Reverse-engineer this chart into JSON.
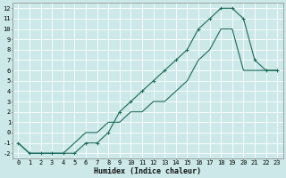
{
  "title": "",
  "xlabel": "Humidex (Indice chaleur)",
  "ylabel": "",
  "bg_color": "#cce8e8",
  "grid_color": "#ffffff",
  "line_color": "#1a6b5a",
  "xlim": [
    -0.5,
    23.5
  ],
  "ylim": [
    -2.5,
    12.5
  ],
  "xticks": [
    0,
    1,
    2,
    3,
    4,
    5,
    6,
    7,
    8,
    9,
    10,
    11,
    12,
    13,
    14,
    15,
    16,
    17,
    18,
    19,
    20,
    21,
    22,
    23
  ],
  "yticks": [
    -2,
    -1,
    0,
    1,
    2,
    3,
    4,
    5,
    6,
    7,
    8,
    9,
    10,
    11,
    12
  ],
  "line1_x": [
    0,
    1,
    2,
    3,
    4,
    5,
    6,
    7,
    8,
    9,
    10,
    11,
    12,
    13,
    14,
    15,
    16,
    17,
    18,
    19,
    20,
    21,
    22,
    23
  ],
  "line1_y": [
    -1,
    -2,
    -2,
    -2,
    -2,
    -2,
    -1,
    -1,
    0,
    2,
    3,
    4,
    5,
    6,
    7,
    8,
    10,
    11,
    12,
    12,
    11,
    7,
    6,
    6
  ],
  "line2_x": [
    0,
    1,
    2,
    3,
    4,
    5,
    6,
    7,
    8,
    9,
    10,
    11,
    12,
    13,
    14,
    15,
    16,
    17,
    18,
    19,
    20,
    21,
    22,
    23
  ],
  "line2_y": [
    -1,
    -2,
    -2,
    -2,
    -2,
    -1,
    0,
    0,
    1,
    1,
    2,
    2,
    3,
    3,
    4,
    5,
    7,
    8,
    10,
    10,
    6,
    6,
    6,
    6
  ],
  "tick_fontsize": 5,
  "xlabel_fontsize": 6,
  "xlabel_fontweight": "bold"
}
